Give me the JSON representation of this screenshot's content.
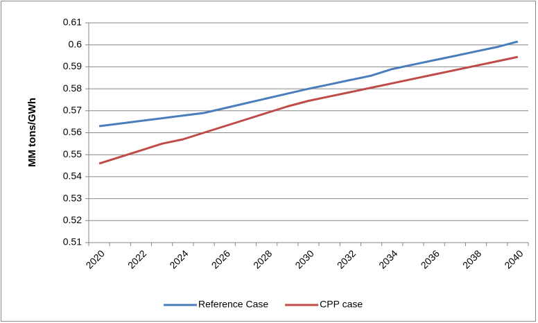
{
  "chart_data": {
    "type": "line",
    "y_label": "MM tons/GWh",
    "categories": [
      "2020",
      null,
      "2022",
      null,
      "2024",
      null,
      "2026",
      null,
      "2028",
      null,
      "2030",
      null,
      "2032",
      null,
      "2034",
      null,
      "2036",
      null,
      "2038",
      null,
      "2040"
    ],
    "series": [
      {
        "name": "Reference Case",
        "color": "#4a7ebb",
        "values": [
          0.563,
          0.5642,
          0.5654,
          0.5666,
          0.5678,
          0.569,
          0.5712,
          0.5734,
          0.5756,
          0.5778,
          0.58,
          0.582,
          0.584,
          0.586,
          0.589,
          0.591,
          0.593,
          0.595,
          0.597,
          0.599,
          0.6015
        ]
      },
      {
        "name": "CPP case",
        "color": "#be4b48",
        "values": [
          0.546,
          0.549,
          0.552,
          0.555,
          0.557,
          0.56,
          0.563,
          0.566,
          0.569,
          0.572,
          0.5745,
          0.5765,
          0.5785,
          0.5805,
          0.5825,
          0.5845,
          0.5865,
          0.5885,
          0.5905,
          0.5925,
          0.5945
        ]
      }
    ],
    "ylim": [
      0.51,
      0.61
    ],
    "yticks": [
      0.51,
      0.52,
      0.53,
      0.54,
      0.55,
      0.56,
      0.57,
      0.58,
      0.59,
      0.6,
      0.61
    ],
    "grid": true,
    "legend": "bottom"
  }
}
